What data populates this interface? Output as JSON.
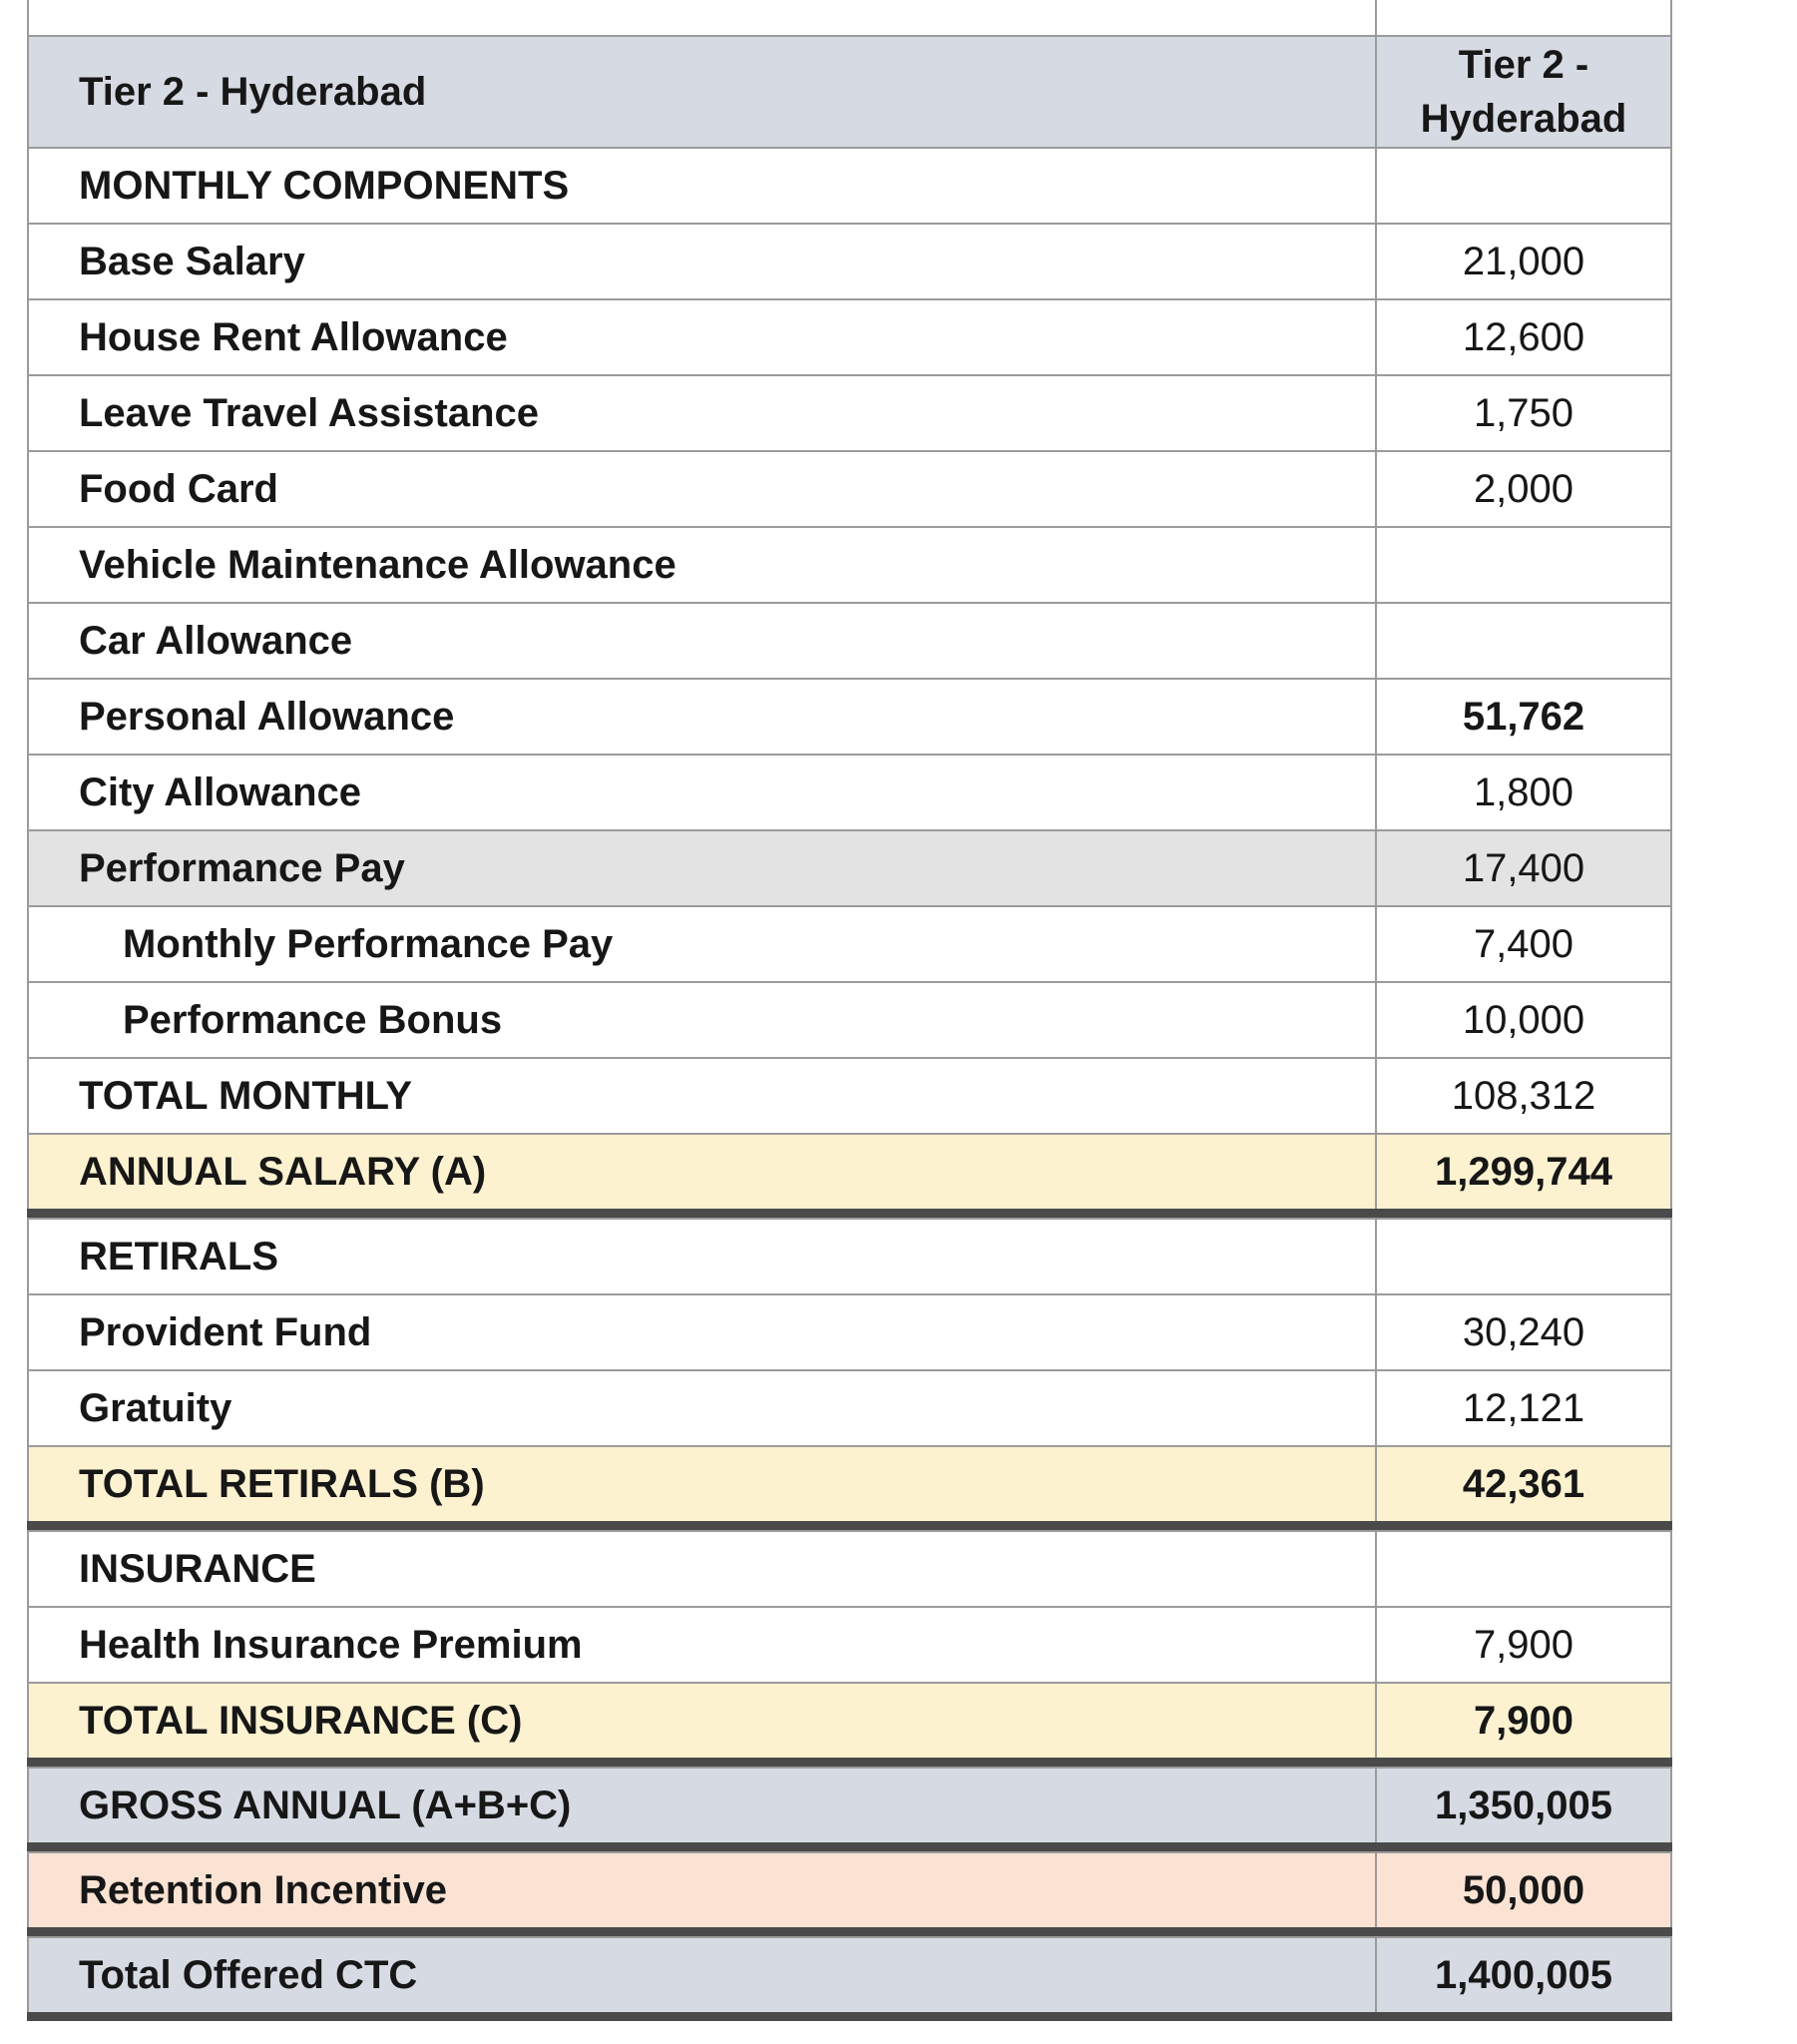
{
  "header": {
    "left_title": "Tier 2 - Hyderabad",
    "right_title_line1": "Tier 2 -",
    "right_title_line2": "Hyderabad"
  },
  "colors": {
    "header_bg": "#d6dbe3",
    "subheader_bg": "#e3e3e3",
    "total_bg": "#fdf2d0",
    "retention_bg": "#fbe3d4",
    "grid_line": "#9b9b9b",
    "section_divider": "#4a4a4a"
  },
  "rows": [
    {
      "label": "MONTHLY COMPONENTS",
      "value": "",
      "bg": "",
      "bold_value": false,
      "indent": false,
      "thick_after": false
    },
    {
      "label": "Base Salary",
      "value": "21,000",
      "bg": "",
      "bold_value": false,
      "indent": false,
      "thick_after": false
    },
    {
      "label": "House Rent Allowance",
      "value": "12,600",
      "bg": "",
      "bold_value": false,
      "indent": false,
      "thick_after": false
    },
    {
      "label": "Leave Travel Assistance",
      "value": "1,750",
      "bg": "",
      "bold_value": false,
      "indent": false,
      "thick_after": false
    },
    {
      "label": "Food Card",
      "value": "2,000",
      "bg": "",
      "bold_value": false,
      "indent": false,
      "thick_after": false
    },
    {
      "label": "Vehicle Maintenance Allowance",
      "value": "",
      "bg": "",
      "bold_value": false,
      "indent": false,
      "thick_after": false
    },
    {
      "label": "Car Allowance",
      "value": "",
      "bg": "",
      "bold_value": false,
      "indent": false,
      "thick_after": false
    },
    {
      "label": "Personal Allowance",
      "value": "51,762",
      "bg": "",
      "bold_value": true,
      "indent": false,
      "thick_after": false
    },
    {
      "label": "City Allowance",
      "value": "1,800",
      "bg": "",
      "bold_value": false,
      "indent": false,
      "thick_after": false
    },
    {
      "label": "Performance Pay",
      "value": "17,400",
      "bg": "gray",
      "bold_value": false,
      "indent": false,
      "thick_after": false
    },
    {
      "label": "Monthly Performance Pay",
      "value": "7,400",
      "bg": "",
      "bold_value": false,
      "indent": true,
      "thick_after": false
    },
    {
      "label": "Performance Bonus",
      "value": "10,000",
      "bg": "",
      "bold_value": false,
      "indent": true,
      "thick_after": false
    },
    {
      "label": "TOTAL MONTHLY",
      "value": "108,312",
      "bg": "",
      "bold_value": false,
      "indent": false,
      "thick_after": false
    },
    {
      "label": "ANNUAL SALARY (A)",
      "value": "1,299,744",
      "bg": "cream",
      "bold_value": true,
      "indent": false,
      "thick_after": true
    },
    {
      "label": "RETIRALS",
      "value": "",
      "bg": "",
      "bold_value": false,
      "indent": false,
      "thick_after": false
    },
    {
      "label": "Provident Fund",
      "value": "30,240",
      "bg": "",
      "bold_value": false,
      "indent": false,
      "thick_after": false
    },
    {
      "label": "Gratuity",
      "value": "12,121",
      "bg": "",
      "bold_value": false,
      "indent": false,
      "thick_after": false
    },
    {
      "label": "TOTAL RETIRALS (B)",
      "value": "42,361",
      "bg": "cream",
      "bold_value": true,
      "indent": false,
      "thick_after": true
    },
    {
      "label": "INSURANCE",
      "value": "",
      "bg": "",
      "bold_value": false,
      "indent": false,
      "thick_after": false
    },
    {
      "label": "Health Insurance Premium",
      "value": "7,900",
      "bg": "",
      "bold_value": false,
      "indent": false,
      "thick_after": false
    },
    {
      "label": "TOTAL INSURANCE (C)",
      "value": "7,900",
      "bg": "cream",
      "bold_value": true,
      "indent": false,
      "thick_after": true
    },
    {
      "label": "GROSS ANNUAL (A+B+C)",
      "value": "1,350,005",
      "bg": "bluegray",
      "bold_value": true,
      "indent": false,
      "thick_after": true
    },
    {
      "label": "Retention Incentive",
      "value": "50,000",
      "bg": "salmon",
      "bold_value": true,
      "indent": false,
      "thick_after": true
    },
    {
      "label": "Total Offered CTC",
      "value": "1,400,005",
      "bg": "bluegray",
      "bold_value": true,
      "indent": false,
      "thick_after": true
    }
  ]
}
